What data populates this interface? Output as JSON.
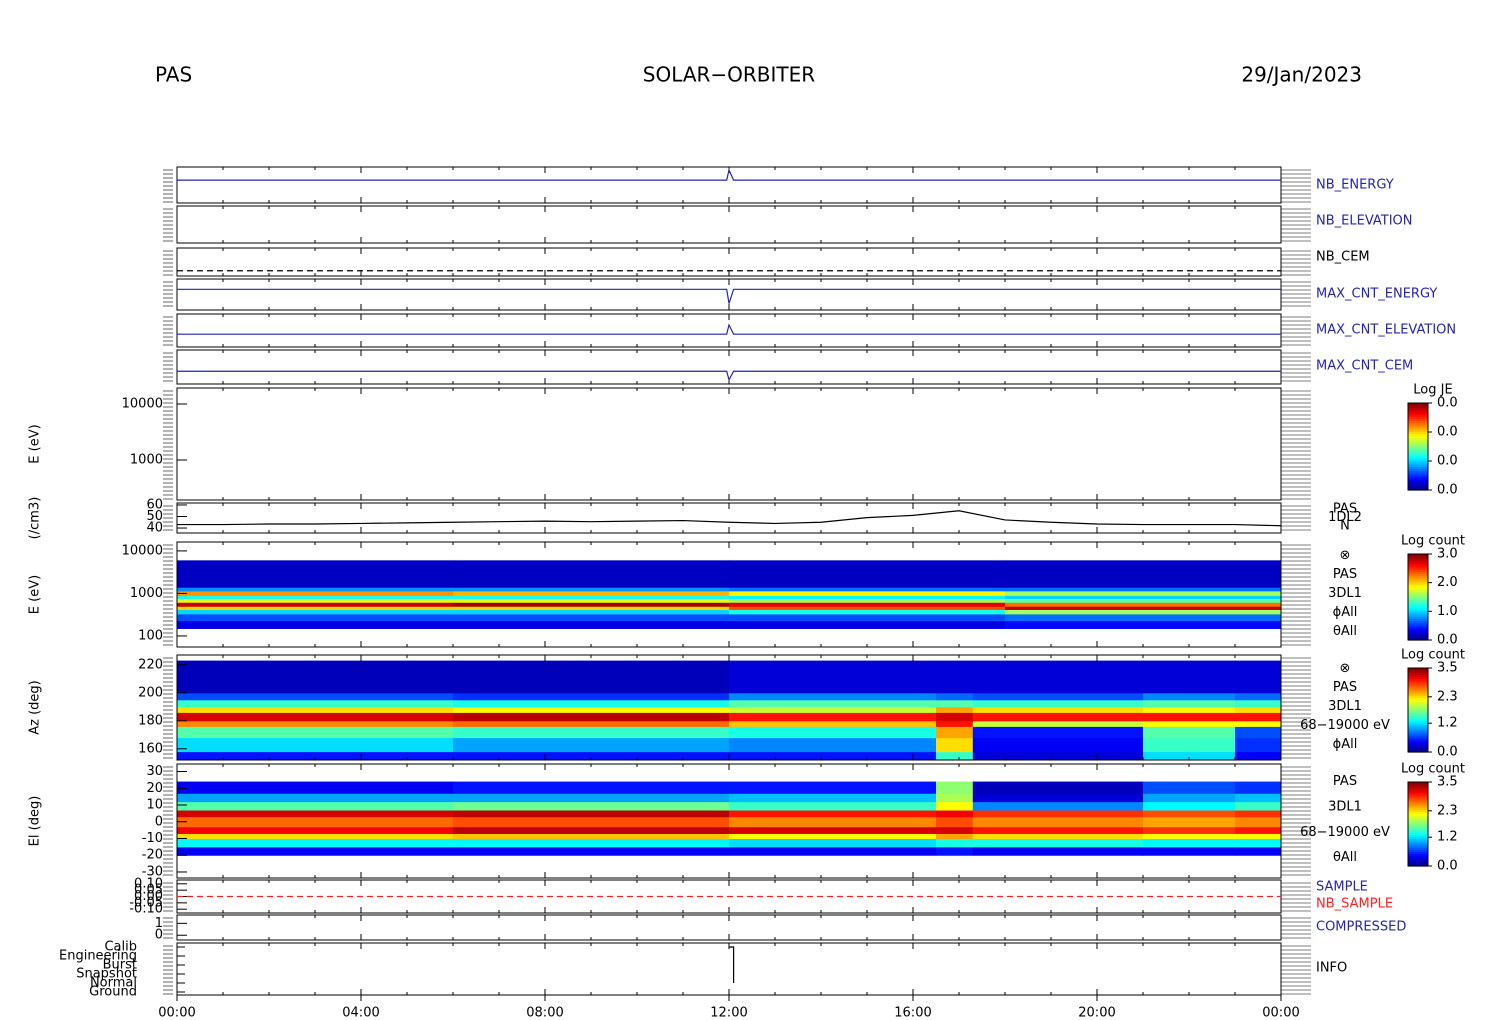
{
  "header": {
    "instrument": "PAS",
    "mission": "SOLAR−ORBITER",
    "date": "29/Jan/2023"
  },
  "time_axis": {
    "xlim": [
      0,
      24
    ],
    "xticks": [
      {
        "value": 0,
        "label": "00:00"
      },
      {
        "value": 4,
        "label": "04:00"
      },
      {
        "value": 8,
        "label": "08:00"
      },
      {
        "value": 12,
        "label": "12:00"
      },
      {
        "value": 16,
        "label": "16:00"
      },
      {
        "value": 20,
        "label": "20:00"
      },
      {
        "value": 24,
        "label": "00:00"
      }
    ]
  },
  "chart_data": [
    {
      "type": "line",
      "series": [
        {
          "name": "NB_ENERGY",
          "color": "#2424b4",
          "x": [
            0,
            11.95,
            12.0,
            12.1,
            24
          ],
          "values": [
            61,
            61,
            88,
            61,
            61
          ]
        }
      ],
      "ylim": [
        0,
        96
      ]
    },
    {
      "type": "line",
      "series": [
        {
          "name": "NB_ELEVATION",
          "color": "#2424b4"
        }
      ],
      "ylim": [
        0,
        9
      ]
    },
    {
      "type": "line",
      "series": [
        {
          "name": "NB_CEM",
          "color": "#000000",
          "dashed": true,
          "x": [
            0,
            24
          ],
          "values": [
            3,
            3
          ]
        }
      ],
      "ylim": [
        0,
        16
      ]
    },
    {
      "type": "line",
      "series": [
        {
          "name": "MAX_CNT_ENERGY",
          "color": "#2424b4",
          "x": [
            0,
            11.95,
            12.0,
            12.1,
            24
          ],
          "values": [
            64,
            64,
            20,
            64,
            64
          ]
        }
      ],
      "ylim": [
        0,
        96
      ]
    },
    {
      "type": "line",
      "series": [
        {
          "name": "MAX_CNT_ELEVATION",
          "color": "#2424b4",
          "x": [
            0,
            11.95,
            12.0,
            12.1,
            24
          ],
          "values": [
            3.5,
            3.5,
            6,
            3.5,
            3.5
          ]
        }
      ],
      "ylim": [
        0,
        9
      ]
    },
    {
      "type": "line",
      "series": [
        {
          "name": "MAX_CNT_CEM",
          "color": "#2424b4",
          "x": [
            0,
            11.95,
            12.0,
            12.1,
            24
          ],
          "values": [
            6,
            6,
            2,
            6,
            6
          ]
        }
      ],
      "ylim": [
        0,
        16
      ]
    },
    {
      "type": "heatmap",
      "ylabel": "E (eV)",
      "log": true,
      "ylim": [
        193,
        19300
      ],
      "yticks": [
        10000,
        1000
      ],
      "colorbar": {
        "title": "Log JE",
        "clim": [
          0,
          0.03
        ],
        "ticks": [
          {
            "value": 0,
            "label": "0.0"
          },
          {
            "value": 0.01,
            "label": "0.0"
          },
          {
            "value": 0.02,
            "label": "0.0"
          },
          {
            "value": 0.03,
            "label": "0.0"
          }
        ]
      }
    },
    {
      "type": "line",
      "ylabel": "(/cm3)",
      "ylim": [
        35.7,
        61.7
      ],
      "yticks": [
        60,
        50,
        40
      ],
      "notes": [
        "PAS",
        "1DL2",
        "N"
      ],
      "series": [
        {
          "color": "#000000",
          "x": [
            0,
            1,
            2,
            3,
            4,
            5,
            6,
            7,
            8,
            9,
            10,
            11,
            12,
            13,
            14,
            15,
            16,
            17,
            18,
            19,
            20,
            21,
            22,
            23,
            24
          ],
          "values": [
            43,
            43,
            43.5,
            43.5,
            44,
            44.5,
            45,
            45.5,
            46,
            45.5,
            46,
            46.5,
            45,
            44,
            45,
            49,
            51,
            55,
            47,
            45,
            43.5,
            43,
            43,
            43,
            42
          ]
        }
      ]
    },
    {
      "type": "heatmap",
      "ylabel": "E (eV)",
      "log": true,
      "ylim": [
        55,
        16200
      ],
      "yticks": [
        10000,
        1000,
        100
      ],
      "notes": [
        "⊗",
        "PAS",
        "3DL1",
        "ϕAll",
        "θAll"
      ],
      "x": [
        0,
        6,
        12,
        18,
        24
      ],
      "y": [
        150,
        230,
        330,
        420,
        500,
        620,
        760,
        900,
        1150,
        1400,
        6000
      ],
      "values": [
        [
          0.3,
          0.3,
          0.3,
          0.4
        ],
        [
          0.6,
          0.6,
          0.6,
          0.7
        ],
        [
          1.0,
          1.0,
          1.2,
          1.6
        ],
        [
          2.0,
          2.0,
          2.4,
          2.8
        ],
        [
          2.8,
          2.9,
          2.7,
          2.3
        ],
        [
          1.8,
          1.8,
          1.6,
          1.4
        ],
        [
          1.2,
          1.2,
          1.1,
          1.0
        ],
        [
          2.2,
          2.1,
          1.9,
          1.6
        ],
        [
          0.8,
          0.8,
          0.7,
          0.7
        ],
        [
          0.2,
          0.2,
          0.2,
          0.2
        ]
      ],
      "colorbar": {
        "title": "Log count",
        "clim": [
          0,
          3
        ],
        "ticks": [
          {
            "value": 0,
            "label": "0.0"
          },
          {
            "value": 1,
            "label": "1.0"
          },
          {
            "value": 2,
            "label": "2.0"
          },
          {
            "value": 3,
            "label": "3.0"
          }
        ]
      }
    },
    {
      "type": "heatmap",
      "ylabel": "Az (deg)",
      "ylim": [
        152,
        227
      ],
      "yticks": [
        220,
        200,
        180,
        160
      ],
      "notes": [
        "⊗",
        "PAS",
        "3DL1",
        "68−19000 eV",
        "ϕAll"
      ],
      "x": [
        0,
        6,
        12,
        16.5,
        17.3,
        21,
        23,
        24
      ],
      "y": [
        152,
        158,
        168,
        176,
        180,
        186,
        190,
        195,
        200,
        223
      ],
      "values": [
        [
          0.5,
          0.5,
          0.5,
          1.5,
          0.3,
          1.2,
          0.4
        ],
        [
          1.2,
          1.0,
          0.9,
          2.3,
          0.4,
          1.5,
          0.6
        ],
        [
          1.6,
          1.5,
          1.4,
          2.5,
          0.5,
          1.6,
          0.7
        ],
        [
          2.6,
          2.7,
          2.4,
          3.0,
          2.0,
          2.2,
          2.2
        ],
        [
          3.2,
          3.3,
          3.0,
          3.2,
          3.0,
          3.0,
          3.0
        ],
        [
          2.3,
          2.2,
          2.0,
          2.5,
          2.3,
          2.2,
          2.3
        ],
        [
          1.5,
          1.4,
          1.6,
          1.6,
          1.5,
          1.6,
          1.5
        ],
        [
          0.7,
          0.6,
          0.9,
          0.8,
          0.7,
          0.9,
          0.8
        ],
        [
          0.2,
          0.2,
          0.3,
          0.3,
          0.3,
          0.3,
          0.3
        ]
      ],
      "colorbar": {
        "title": "Log count",
        "clim": [
          0,
          3.5
        ],
        "ticks": [
          {
            "value": 0,
            "label": "0.0"
          },
          {
            "value": 1.2,
            "label": "1.2"
          },
          {
            "value": 2.3,
            "label": "2.3"
          },
          {
            "value": 3.5,
            "label": "3.5"
          }
        ]
      }
    },
    {
      "type": "heatmap",
      "ylabel": "El (deg)",
      "ylim": [
        -33.6,
        34.5
      ],
      "yticks": [
        30,
        20,
        10,
        0,
        -10,
        -20,
        -30
      ],
      "notes": [
        "PAS",
        "3DL1",
        "68−19000 eV",
        "θAll"
      ],
      "x": [
        0,
        6,
        12,
        16.5,
        17.3,
        21,
        23,
        24
      ],
      "y": [
        -20,
        -15,
        -10,
        -7,
        -3,
        3,
        7,
        12,
        17,
        24
      ],
      "values": [
        [
          0.4,
          0.4,
          0.4,
          0.5,
          0.4,
          0.4,
          0.4
        ],
        [
          1.3,
          1.3,
          1.2,
          1.4,
          1.4,
          1.3,
          1.3
        ],
        [
          2.3,
          2.4,
          2.2,
          2.5,
          2.3,
          2.2,
          2.2
        ],
        [
          3.1,
          3.3,
          3.2,
          3.2,
          3.0,
          2.9,
          3.0
        ],
        [
          2.7,
          2.8,
          2.6,
          2.8,
          2.6,
          2.5,
          2.6
        ],
        [
          3.2,
          3.3,
          3.0,
          3.1,
          2.9,
          2.8,
          2.9
        ],
        [
          1.6,
          1.7,
          1.5,
          2.2,
          0.9,
          1.3,
          1.5
        ],
        [
          1.0,
          1.0,
          1.1,
          1.9,
          0.3,
          1.0,
          1.1
        ],
        [
          0.4,
          0.5,
          0.5,
          1.8,
          0.2,
          0.7,
          0.6
        ]
      ],
      "colorbar": {
        "title": "Log count",
        "clim": [
          0,
          3.5
        ],
        "ticks": [
          {
            "value": 0,
            "label": "0.0"
          },
          {
            "value": 1.2,
            "label": "1.2"
          },
          {
            "value": 2.3,
            "label": "2.3"
          },
          {
            "value": 3.5,
            "label": "3.5"
          }
        ]
      }
    },
    {
      "type": "line",
      "ylim": [
        -0.13,
        0.13
      ],
      "yticks": [
        {
          "value": 0.1,
          "label": "0.10"
        },
        {
          "value": 0.05,
          "label": "0.05"
        },
        {
          "value": 0,
          "label": "0.00"
        },
        {
          "value": -0.05,
          "label": "-0.05"
        },
        {
          "value": -0.1,
          "label": "-0.10"
        }
      ],
      "series": [
        {
          "name": "SAMPLE",
          "color": "#2424b4"
        },
        {
          "name": "NB_SAMPLE",
          "color": "#ff2020",
          "dashed": true,
          "x": [
            0,
            24
          ],
          "values": [
            0,
            0
          ]
        }
      ]
    },
    {
      "type": "line",
      "ylim": [
        -0.4,
        1.7
      ],
      "yticks": [
        1,
        0
      ],
      "series": [
        {
          "name": "COMPRESSED",
          "color": "#2424b4"
        }
      ]
    },
    {
      "type": "category-line",
      "categories": [
        "Calib",
        "Engineering",
        "Burst",
        "Snapshot",
        "Normal",
        "Ground"
      ],
      "series": [
        {
          "name": "INFO",
          "color": "#000000",
          "x": [
            12.0,
            12.1,
            12.1
          ],
          "values": [
            "Calib",
            "Calib",
            "Normal"
          ]
        }
      ]
    }
  ]
}
